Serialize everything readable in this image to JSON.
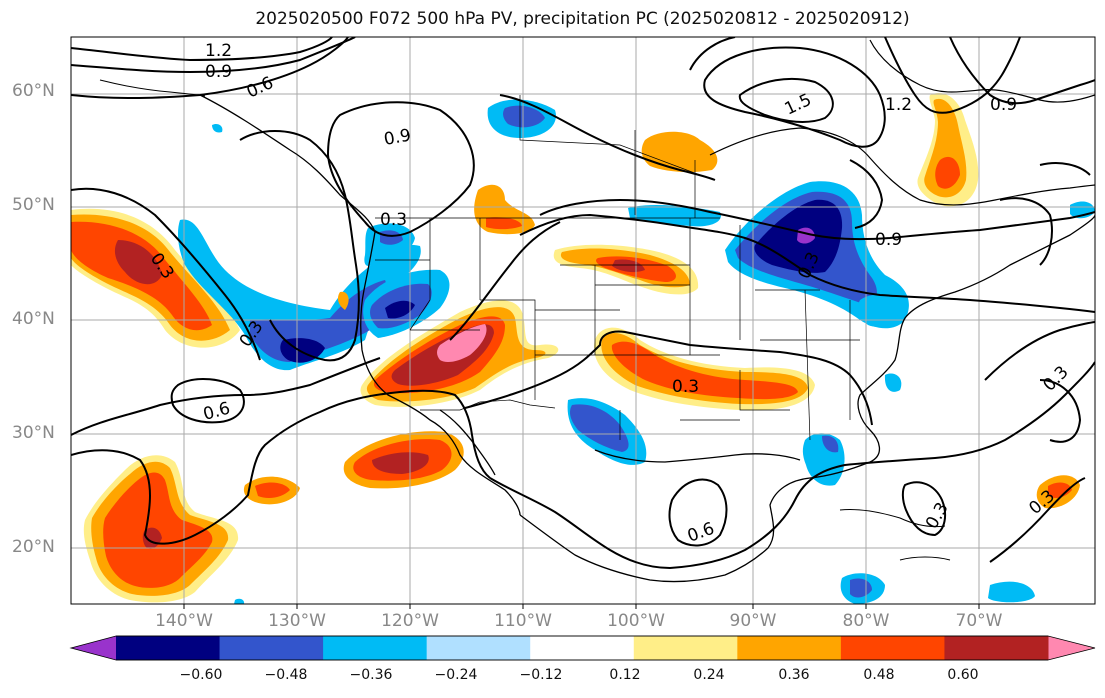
{
  "title": "2025020500 F072 500 hPa PV, precipitation PC (2025020812 - 2025020912)",
  "lat_labels": [
    "60°N",
    "50°N",
    "40°N",
    "30°N",
    "20°N"
  ],
  "lon_labels": [
    "140°W",
    "130°W",
    "120°W",
    "110°W",
    "100°W",
    "90°W",
    "80°W",
    "70°W"
  ],
  "colorbar": {
    "tick_labels": [
      "−0.60",
      "−0.48",
      "−0.36",
      "−0.24",
      "−0.12",
      "0.12",
      "0.24",
      "0.36",
      "0.48",
      "0.60"
    ],
    "colors": [
      "#9933cc",
      "#000080",
      "#3355cc",
      "#00bbf5",
      "#b0e0ff",
      "#ffffff",
      "#ffee88",
      "#ffa500",
      "#ff4500",
      "#b22222",
      "#ff88b0"
    ]
  },
  "contour_labels": [
    "1.2",
    "0.9",
    "0.6",
    "0.9",
    "0.3",
    "0.3",
    "0.3",
    "0.6",
    "1.5",
    "1.2",
    "0.9",
    "0.9",
    "0.3",
    "0.6",
    "0.3",
    "0.3",
    "0.3",
    "0.3"
  ],
  "colors": {
    "purple": "#9933cc",
    "navy": "#000080",
    "blue": "#3355cc",
    "cyan": "#00bbf5",
    "lightblue": "#b0e0ff",
    "yellow": "#ffee88",
    "orange": "#ffa500",
    "redorange": "#ff4500",
    "darkred": "#b22222",
    "pink": "#ff88b0"
  }
}
